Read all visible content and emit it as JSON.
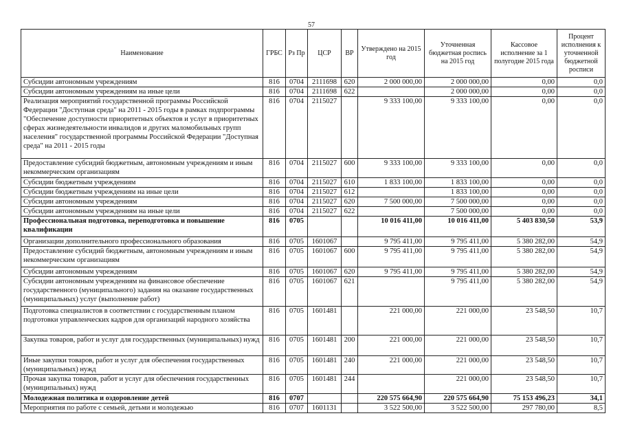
{
  "page_number": "57",
  "table": {
    "columns": [
      "Наименование",
      "ГРБС",
      "Рз Пр",
      "ЦСР",
      "ВР",
      "Утверждено на 2015 год",
      "Уточненная бюджетная роспись на 2015 год",
      "Кассовое исполнение за 1 полугодие 2015 года",
      "Процент исполнения к уточненной бюджетной росписи"
    ],
    "rows": [
      [
        "Субсидии автономным учреждениям",
        "816",
        "0704",
        "2111698",
        "620",
        "2 000 000,00",
        "2 000 000,00",
        "0,00",
        "0,0"
      ],
      [
        "Субсидии автономным учреждениям на иные цели",
        "816",
        "0704",
        "2111698",
        "622",
        null,
        "2 000 000,00",
        "0,00",
        "0,0"
      ],
      [
        "Реализация мероприятий государственной программы Российской Федерации \"Доступная среда\" на 2011 - 2015 годы в рамках подпрограммы \"Обеспечение доступности приоритетных объектов и услуг в приоритетных сферах жизнедеятельности инвалидов и других маломобильных групп населения\" государственной программы Российской Федерации \"Доступная среда\" на 2011 - 2015 годы",
        "816",
        "0704",
        "2115027",
        null,
        "9 333 100,00",
        "9 333 100,00",
        "0,00",
        "0,0"
      ],
      [
        "Предоставление субсидий бюджетным, автономным учреждениям и иным некоммерческим организациям",
        "816",
        "0704",
        "2115027",
        "600",
        "9 333 100,00",
        "9 333 100,00",
        "0,00",
        "0,0"
      ],
      [
        "Субсидии бюджетным учреждениям",
        "816",
        "0704",
        "2115027",
        "610",
        "1 833 100,00",
        "1 833 100,00",
        "0,00",
        "0,0"
      ],
      [
        "Субсидии бюджетным учреждениям на иные цели",
        "816",
        "0704",
        "2115027",
        "612",
        null,
        "1 833 100,00",
        "0,00",
        "0,0"
      ],
      [
        "Субсидии автономным учреждениям",
        "816",
        "0704",
        "2115027",
        "620",
        "7 500 000,00",
        "7 500 000,00",
        "0,00",
        "0,0"
      ],
      [
        "Субсидии автономным учреждениям на иные цели",
        "816",
        "0704",
        "2115027",
        "622",
        null,
        "7 500 000,00",
        "0,00",
        "0,0"
      ],
      [
        "Профессиональная подготовка, переподготовка и повышение квалификации",
        "816",
        "0705",
        null,
        null,
        "10 016 411,00",
        "10 016 411,00",
        "5 403 830,50",
        "53,9"
      ],
      [
        "Организации дополнительного профессионального образования",
        "816",
        "0705",
        "1601067",
        null,
        "9 795 411,00",
        "9 795 411,00",
        "5 380 282,00",
        "54,9"
      ],
      [
        "Предоставление субсидий бюджетным, автономным учреждениям и иным некоммерческим организациям",
        "816",
        "0705",
        "1601067",
        "600",
        "9 795 411,00",
        "9 795 411,00",
        "5 380 282,00",
        "54,9"
      ],
      [
        "Субсидии автономным учреждениям",
        "816",
        "0705",
        "1601067",
        "620",
        "9 795 411,00",
        "9 795 411,00",
        "5 380 282,00",
        "54,9"
      ],
      [
        "Субсидии автономным учреждениям на финансовое обеспечение государственного (муниципального) задания на оказание государственных (муниципальных) услуг (выполнение работ)",
        "816",
        "0705",
        "1601067",
        "621",
        null,
        "9 795 411,00",
        "5 380 282,00",
        "54,9"
      ],
      [
        "Подготовка специалистов в соответствии с государственным планом подготовки управленческих кадров для организаций народного хозяйства",
        "816",
        "0705",
        "1601481",
        null,
        "221 000,00",
        "221 000,00",
        "23 548,50",
        "10,7"
      ],
      [
        "Закупка товаров, работ и услуг для государственных (муниципальных) нужд",
        "816",
        "0705",
        "1601481",
        "200",
        "221 000,00",
        "221 000,00",
        "23 548,50",
        "10,7"
      ],
      [
        "Иные закупки товаров, работ и услуг для обеспечения государственных (муниципальных) нужд",
        "816",
        "0705",
        "1601481",
        "240",
        "221 000,00",
        "221 000,00",
        "23 548,50",
        "10,7"
      ],
      [
        "Прочая закупка товаров, работ и услуг для обеспечения государственных (муниципальных) нужд",
        "816",
        "0705",
        "1601481",
        "244",
        null,
        "221 000,00",
        "23 548,50",
        "10,7"
      ],
      [
        "Молодежная политика и оздоровление детей",
        "816",
        "0707",
        null,
        null,
        "220 575 664,90",
        "220 575 664,90",
        "75 153 496,23",
        "34,1"
      ],
      [
        "Мероприятия по работе с семьей, детьми и молодежью",
        "816",
        "0707",
        "1601131",
        null,
        "3 522 500,00",
        "3 522 500,00",
        "297 780,00",
        "8,5"
      ]
    ]
  }
}
